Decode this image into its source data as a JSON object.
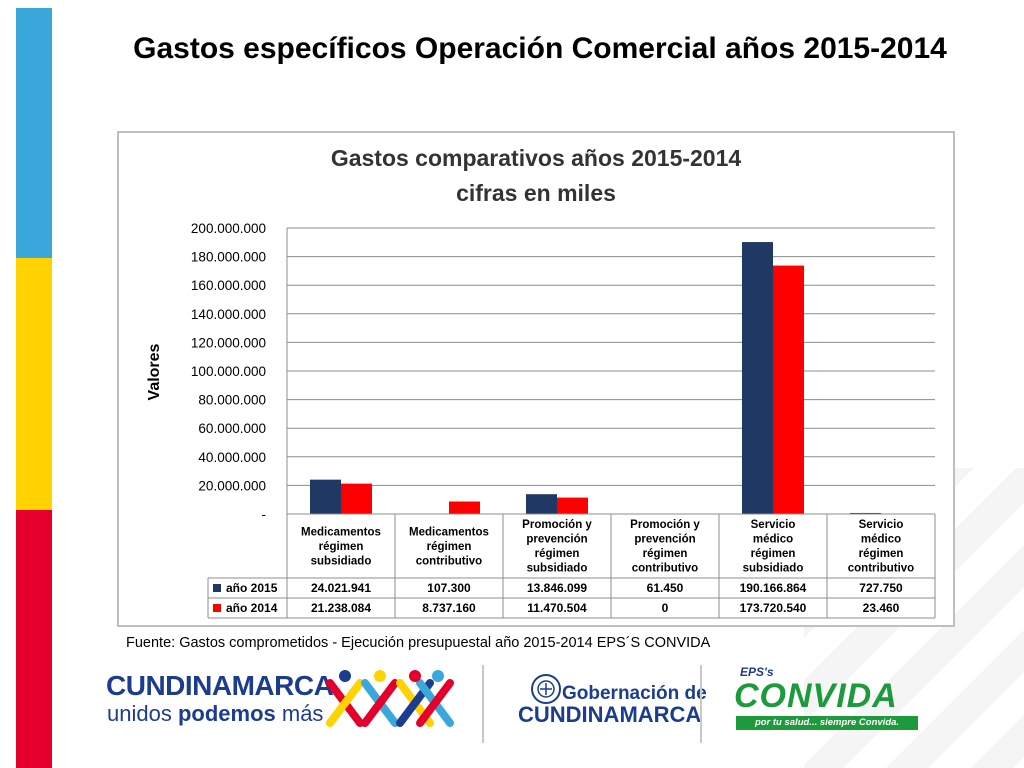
{
  "slide": {
    "title": "Gastos específicos Operación Comercial años 2015-2014",
    "source": "Fuente: Gastos comprometidos - Ejecución presupuestal año 2015-2014 EPS´S CONVIDA"
  },
  "colors": {
    "series_2015": "#1f3864",
    "series_2014": "#ff0000",
    "stripe_blue": "#3aa7dd",
    "stripe_yellow": "#ffd200",
    "stripe_red": "#e4002b"
  },
  "logos": {
    "cundinamarca_name": "CUNDINAMARCA",
    "cundinamarca_slogan_1": "unidos ",
    "cundinamarca_slogan_2": "podemos",
    "cundinamarca_slogan_3": " más",
    "gobernacion_line1": "Gobernación de",
    "gobernacion_line2": "CUNDINAMARCA",
    "eps_label": "EPS's",
    "convida_name": "CONVIDA",
    "convida_tagline": "por tu salud... siempre Convida."
  },
  "chart_data": {
    "type": "bar",
    "title_line1": "Gastos comparativos años 2015-2014",
    "title_line2": "cifras en miles",
    "ylabel": "Valores",
    "ylim": [
      0,
      200000000
    ],
    "yticks": [
      "-",
      "20.000.000",
      "40.000.000",
      "60.000.000",
      "80.000.000",
      "100.000.000",
      "120.000.000",
      "140.000.000",
      "160.000.000",
      "180.000.000",
      "200.000.000"
    ],
    "grid": true,
    "legend": "data-table",
    "categories": [
      [
        "Medicamentos",
        "régimen",
        "subsidiado"
      ],
      [
        "Medicamentos",
        "régimen",
        "contributivo"
      ],
      [
        "Promoción y",
        "prevención",
        "régimen",
        "subsidiado"
      ],
      [
        "Promoción y",
        "prevención",
        "régimen",
        "contributivo"
      ],
      [
        "Servicio",
        "médico",
        "régimen",
        "subsidiado"
      ],
      [
        "Servicio",
        "médico",
        "régimen",
        "contributivo"
      ]
    ],
    "series": [
      {
        "name": "año 2015",
        "values": [
          24021941,
          107300,
          13846099,
          61450,
          190166864,
          727750
        ],
        "labels": [
          "24.021.941",
          "107.300",
          "13.846.099",
          "61.450",
          "190.166.864",
          "727.750"
        ]
      },
      {
        "name": "año 2014",
        "values": [
          21238084,
          8737160,
          11470504,
          0,
          173720540,
          23460
        ],
        "labels": [
          "21.238.084",
          "8.737.160",
          "11.470.504",
          "0",
          "173.720.540",
          "23.460"
        ]
      }
    ]
  }
}
